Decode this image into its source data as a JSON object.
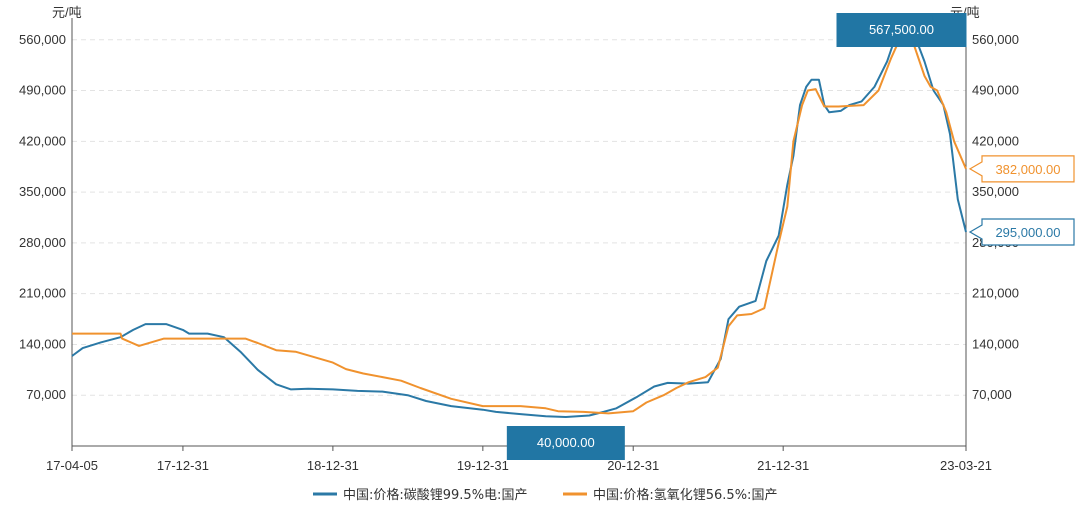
{
  "chart_data": {
    "type": "line",
    "unit_left": "元/吨",
    "unit_right": "元/吨",
    "x_ticks": [
      "17-04-05",
      "17-12-31",
      "18-12-31",
      "19-12-31",
      "20-12-31",
      "21-12-31",
      "23-03-21"
    ],
    "y_ticks": [
      "70,000",
      "140,000",
      "210,000",
      "280,000",
      "350,000",
      "420,000",
      "490,000",
      "560,000"
    ],
    "ylim": [
      0,
      590000
    ],
    "xlim": [
      "2017-04-05",
      "2023-03-21"
    ],
    "grid": true,
    "legend_position": "bottom",
    "series": [
      {
        "name": "中国:价格:碳酸锂99.5%电:国产",
        "color": "#2b79a6",
        "points": [
          [
            "2017-04-05",
            124000
          ],
          [
            "2017-05-01",
            135000
          ],
          [
            "2017-06-15",
            143000
          ],
          [
            "2017-08-01",
            150000
          ],
          [
            "2017-09-01",
            160000
          ],
          [
            "2017-10-01",
            168000
          ],
          [
            "2017-11-20",
            168000
          ],
          [
            "2017-12-31",
            160000
          ],
          [
            "2018-01-15",
            155000
          ],
          [
            "2018-03-01",
            155000
          ],
          [
            "2018-04-10",
            150000
          ],
          [
            "2018-05-20",
            130000
          ],
          [
            "2018-07-01",
            105000
          ],
          [
            "2018-08-15",
            85000
          ],
          [
            "2018-09-20",
            78000
          ],
          [
            "2018-11-01",
            79000
          ],
          [
            "2018-12-31",
            78000
          ],
          [
            "2019-03-01",
            76000
          ],
          [
            "2019-05-01",
            75000
          ],
          [
            "2019-07-01",
            70000
          ],
          [
            "2019-08-15",
            62000
          ],
          [
            "2019-10-15",
            55000
          ],
          [
            "2019-12-31",
            50000
          ],
          [
            "2020-02-01",
            47000
          ],
          [
            "2020-04-01",
            44000
          ],
          [
            "2020-06-01",
            41000
          ],
          [
            "2020-07-20",
            40000
          ],
          [
            "2020-09-15",
            42000
          ],
          [
            "2020-10-20",
            47000
          ],
          [
            "2020-11-20",
            52000
          ],
          [
            "2021-01-10",
            68000
          ],
          [
            "2021-02-20",
            82000
          ],
          [
            "2021-03-25",
            87000
          ],
          [
            "2021-05-15",
            86000
          ],
          [
            "2021-07-01",
            88000
          ],
          [
            "2021-08-01",
            120000
          ],
          [
            "2021-08-20",
            175000
          ],
          [
            "2021-09-15",
            192000
          ],
          [
            "2021-10-25",
            200000
          ],
          [
            "2021-11-20",
            255000
          ],
          [
            "2021-12-20",
            290000
          ],
          [
            "2022-01-10",
            360000
          ],
          [
            "2022-01-25",
            400000
          ],
          [
            "2022-02-10",
            470000
          ],
          [
            "2022-02-25",
            495000
          ],
          [
            "2022-03-10",
            505000
          ],
          [
            "2022-03-28",
            505000
          ],
          [
            "2022-04-10",
            470000
          ],
          [
            "2022-04-22",
            460000
          ],
          [
            "2022-05-20",
            462000
          ],
          [
            "2022-06-10",
            470000
          ],
          [
            "2022-07-10",
            475000
          ],
          [
            "2022-08-10",
            495000
          ],
          [
            "2022-09-10",
            530000
          ],
          [
            "2022-09-25",
            555000
          ],
          [
            "2022-10-15",
            567500
          ],
          [
            "2022-11-20",
            560000
          ],
          [
            "2022-12-10",
            530000
          ],
          [
            "2023-01-01",
            490000
          ],
          [
            "2023-01-25",
            470000
          ],
          [
            "2023-02-10",
            430000
          ],
          [
            "2023-03-01",
            340000
          ],
          [
            "2023-03-21",
            295000
          ]
        ]
      },
      {
        "name": "中国:价格:氢氧化锂56.5%:国产",
        "color": "#f0922e",
        "points": [
          [
            "2017-04-05",
            155000
          ],
          [
            "2017-08-01",
            155000
          ],
          [
            "2017-08-05",
            148000
          ],
          [
            "2017-09-15",
            138000
          ],
          [
            "2017-10-15",
            143000
          ],
          [
            "2017-11-15",
            148000
          ],
          [
            "2017-12-31",
            148000
          ],
          [
            "2018-03-01",
            148000
          ],
          [
            "2018-06-01",
            148000
          ],
          [
            "2018-07-01",
            142000
          ],
          [
            "2018-08-15",
            132000
          ],
          [
            "2018-10-01",
            130000
          ],
          [
            "2018-12-31",
            115000
          ],
          [
            "2019-02-01",
            106000
          ],
          [
            "2019-03-15",
            100000
          ],
          [
            "2019-05-01",
            95000
          ],
          [
            "2019-06-15",
            90000
          ],
          [
            "2019-08-01",
            80000
          ],
          [
            "2019-10-15",
            65000
          ],
          [
            "2019-12-31",
            55000
          ],
          [
            "2020-02-01",
            55000
          ],
          [
            "2020-04-01",
            55000
          ],
          [
            "2020-06-01",
            52000
          ],
          [
            "2020-07-01",
            48000
          ],
          [
            "2020-09-01",
            47000
          ],
          [
            "2020-11-01",
            45000
          ],
          [
            "2020-12-31",
            48000
          ],
          [
            "2021-02-01",
            60000
          ],
          [
            "2021-03-15",
            70000
          ],
          [
            "2021-04-15",
            80000
          ],
          [
            "2021-05-15",
            88000
          ],
          [
            "2021-06-25",
            95000
          ],
          [
            "2021-07-25",
            108000
          ],
          [
            "2021-08-20",
            165000
          ],
          [
            "2021-09-10",
            180000
          ],
          [
            "2021-10-15",
            182000
          ],
          [
            "2021-11-15",
            190000
          ],
          [
            "2021-12-20",
            280000
          ],
          [
            "2022-01-10",
            330000
          ],
          [
            "2022-01-25",
            420000
          ],
          [
            "2022-02-15",
            470000
          ],
          [
            "2022-03-01",
            490000
          ],
          [
            "2022-03-20",
            492000
          ],
          [
            "2022-04-10",
            468000
          ],
          [
            "2022-05-15",
            468000
          ],
          [
            "2022-07-15",
            470000
          ],
          [
            "2022-08-20",
            490000
          ],
          [
            "2022-09-20",
            535000
          ],
          [
            "2022-10-10",
            560000
          ],
          [
            "2022-11-10",
            560000
          ],
          [
            "2022-12-10",
            510000
          ],
          [
            "2022-12-25",
            495000
          ],
          [
            "2023-01-10",
            490000
          ],
          [
            "2023-02-01",
            460000
          ],
          [
            "2023-02-20",
            420000
          ],
          [
            "2023-03-21",
            382000
          ]
        ]
      }
    ],
    "callouts": [
      {
        "label": "567,500.00",
        "target": "max"
      },
      {
        "label": "40,000.00",
        "target": "min"
      },
      {
        "label": "382,000.00",
        "target": "last-orange"
      },
      {
        "label": "295,000.00",
        "target": "last-blue"
      }
    ]
  }
}
